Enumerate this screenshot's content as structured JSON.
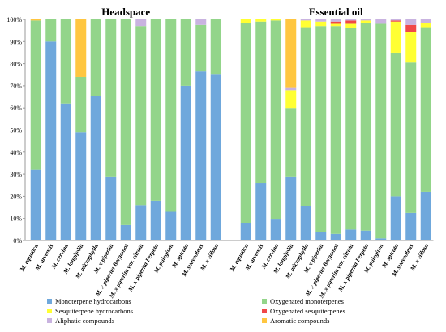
{
  "chart_data": {
    "type": "bar",
    "stacked": true,
    "y_axis": {
      "ylim": [
        0,
        100
      ],
      "ticks": [
        "0%",
        "10%",
        "20%",
        "30%",
        "40%",
        "50%",
        "60%",
        "70%",
        "80%",
        "90%",
        "100%"
      ]
    },
    "grid": false,
    "legend_placement": "bottom",
    "series": [
      {
        "name": "Monoterpene hydrocarbons",
        "color": "#6fa8dc"
      },
      {
        "name": "Oxygenated monoterpenes",
        "color": "#93d58a"
      },
      {
        "name": "Sesquiterpene hydrocarbons",
        "color": "#ffff33"
      },
      {
        "name": "Oxygenated sesquiterpenes",
        "color": "#f04848"
      },
      {
        "name": "Aliphatic compounds",
        "color": "#c9b3e0"
      },
      {
        "name": "Aromatic compounds",
        "color": "#ffc640"
      }
    ],
    "panels": [
      {
        "title": "Headspace",
        "categories": [
          "M. aquatica",
          "M. arvensis",
          "M. cervina",
          "M. longifolia",
          "M. microphylla",
          "M. x piperita",
          "M. x piperita Bergamot",
          "M. x piperita var. citrata",
          "M. x piperita Perpeta",
          "M. pulegium",
          "M. spicata",
          "M. suaveolens",
          "M. x villosa"
        ],
        "values": [
          [
            32,
            67.5,
            0,
            0,
            0,
            0.5
          ],
          [
            90,
            10,
            0,
            0,
            0,
            0
          ],
          [
            62,
            38,
            0,
            0,
            0,
            0
          ],
          [
            49,
            25,
            0,
            0,
            0,
            26
          ],
          [
            65.5,
            34.5,
            0,
            0,
            0,
            0
          ],
          [
            29,
            71,
            0,
            0,
            0,
            0
          ],
          [
            7,
            93,
            0,
            0,
            0,
            0
          ],
          [
            16,
            81,
            0,
            0,
            3,
            0
          ],
          [
            18,
            82,
            0,
            0,
            0,
            0
          ],
          [
            13,
            87,
            0,
            0,
            0,
            0
          ],
          [
            70,
            30,
            0,
            0,
            0,
            0
          ],
          [
            76.5,
            21,
            0,
            0,
            2.5,
            0
          ],
          [
            75,
            25,
            0,
            0,
            0,
            0
          ]
        ]
      },
      {
        "title": "Essential oil",
        "categories": [
          "M. aquatica",
          "M. arvensis",
          "M. cervina",
          "M. longifolia",
          "M. microphylla",
          "M. x piperita",
          "M. x piperita Bergamot",
          "M. x piperita var. citrata",
          "M. x piperita Perpeta",
          "M. pulegium",
          "M. spicata",
          "M. suaveolens",
          "M. x villosa"
        ],
        "values": [
          [
            8,
            90.5,
            1.5,
            0,
            0,
            0
          ],
          [
            26,
            73,
            1,
            0,
            0,
            0
          ],
          [
            9.5,
            90,
            0.5,
            0,
            0,
            0
          ],
          [
            29,
            31,
            8,
            0,
            1,
            31
          ],
          [
            15.5,
            81,
            3,
            0,
            0.5,
            0
          ],
          [
            4,
            93,
            2,
            0,
            1,
            0
          ],
          [
            3,
            94,
            1,
            1,
            1,
            0
          ],
          [
            5,
            91,
            2,
            1.5,
            0.5,
            0
          ],
          [
            4.5,
            94,
            1,
            0,
            0.5,
            0
          ],
          [
            1,
            97,
            0,
            0,
            2,
            0
          ],
          [
            20,
            65,
            14,
            0.5,
            0.5,
            0
          ],
          [
            12.5,
            68,
            14,
            3,
            2.5,
            0
          ],
          [
            22,
            74.5,
            2,
            0,
            1.5,
            0
          ]
        ]
      }
    ]
  }
}
